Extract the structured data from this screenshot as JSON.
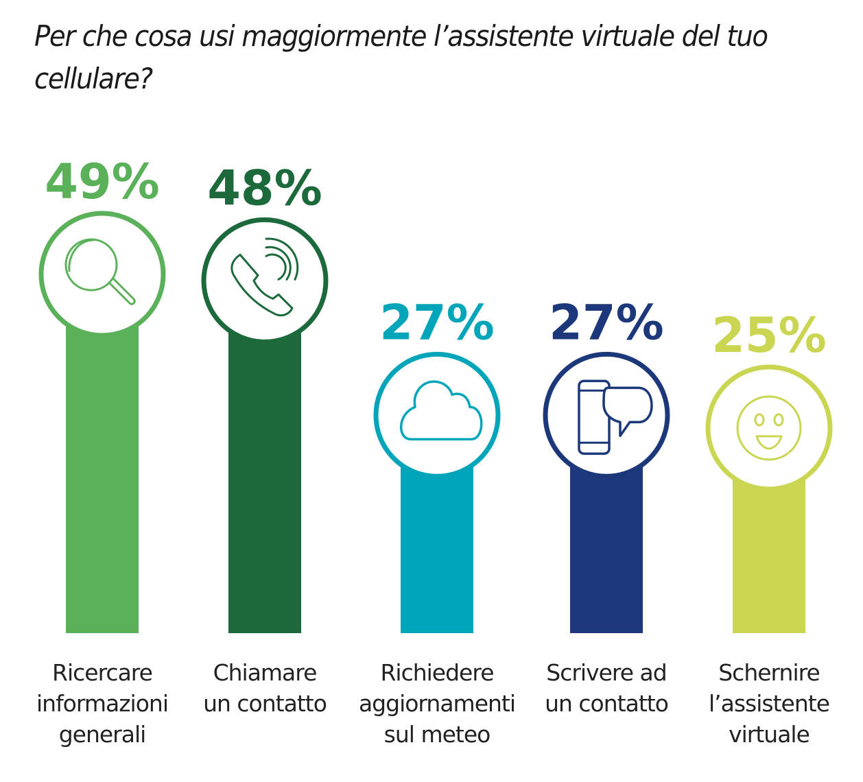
{
  "title": "Per che cosa usi maggiormente l’assistente virtuale del tuo cellulare?",
  "chart_data": {
    "type": "bar",
    "title": "Per che cosa usi maggiormente l’assistente virtuale del tuo cellulare?",
    "xlabel": "",
    "ylabel": "",
    "ylim": [
      0,
      100
    ],
    "grid": false,
    "legend": "none",
    "unit": "%",
    "categories": [
      "Ricercare informazioni generali",
      "Chiamare un contatto",
      "Richiedere aggiornamenti sul meteo",
      "Scrivere ad un contatto",
      "Schernire l’assistente virtuale"
    ],
    "values": [
      49,
      48,
      27,
      27,
      25
    ],
    "value_labels": [
      "49%",
      "48%",
      "27%",
      "27%",
      "25%"
    ],
    "label_lines": [
      [
        "Ricercare",
        "informazioni",
        "generali"
      ],
      [
        "Chiamare",
        "un contatto"
      ],
      [
        "Richiedere",
        "aggiornamenti",
        "sul meteo"
      ],
      [
        "Scrivere ad",
        "un contatto"
      ],
      [
        "Schernire",
        "l’assistente",
        "virtuale"
      ]
    ],
    "icons": [
      "search-icon",
      "phone-call-icon",
      "cloud-icon",
      "phone-message-icon",
      "smiley-icon"
    ],
    "colors": [
      "#5bb05a",
      "#1c6a3c",
      "#00a5ba",
      "#1c387a",
      "#cad651"
    ]
  }
}
